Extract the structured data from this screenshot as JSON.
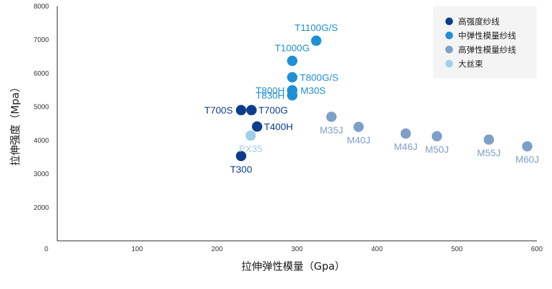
{
  "chart_data": {
    "type": "scatter",
    "xlabel": "拉伸弹性模量（Gpa）",
    "ylabel": "拉伸强度（Mpa）",
    "xlim": [
      0,
      600
    ],
    "ylim": [
      1000,
      8000
    ],
    "x_ticks": [
      0,
      100,
      200,
      300,
      400,
      500,
      600
    ],
    "y_ticks": [
      2000,
      3000,
      4000,
      5000,
      6000,
      7000,
      8000
    ],
    "grid": false,
    "legend_position": "top-right",
    "series": [
      {
        "name": "高强度纱线",
        "color": "#0b3d8c",
        "points": [
          {
            "label": "T300",
            "x": 230,
            "y": 3530
          },
          {
            "label": "T700S",
            "x": 230,
            "y": 4900
          },
          {
            "label": "T700G",
            "x": 243,
            "y": 4900
          },
          {
            "label": "T400H",
            "x": 250,
            "y": 4410
          }
        ]
      },
      {
        "name": "中弹性模量纱线",
        "color": "#1f8fd6",
        "points": [
          {
            "label": "T1100G/S",
            "x": 324,
            "y": 6970
          },
          {
            "label": "T1000G",
            "x": 294,
            "y": 6370
          },
          {
            "label": "T800G/S",
            "x": 294,
            "y": 5880
          },
          {
            "label": "T800H",
            "x": 294,
            "y": 5490
          },
          {
            "label": "M30S",
            "x": 294,
            "y": 5490
          },
          {
            "label": "T830H",
            "x": 294,
            "y": 5340
          }
        ]
      },
      {
        "name": "高弹性模量纱线",
        "color": "#7e9fc8",
        "points": [
          {
            "label": "M35J",
            "x": 343,
            "y": 4700
          },
          {
            "label": "M40J",
            "x": 377,
            "y": 4400
          },
          {
            "label": "M46J",
            "x": 436,
            "y": 4200
          },
          {
            "label": "M50J",
            "x": 475,
            "y": 4120
          },
          {
            "label": "M55J",
            "x": 540,
            "y": 4020
          },
          {
            "label": "M60J",
            "x": 588,
            "y": 3820
          }
        ]
      },
      {
        "name": "大丝束",
        "color": "#9fd0ea",
        "points": [
          {
            "label": "PX35",
            "x": 242,
            "y": 4140
          }
        ]
      }
    ]
  }
}
